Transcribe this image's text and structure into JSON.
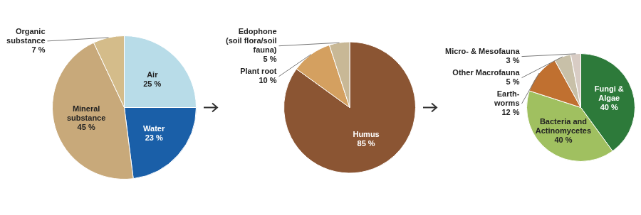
{
  "chart_data": [
    {
      "type": "pie",
      "categories": [
        "Air",
        "Water",
        "Mineral\nsubstance",
        "Organic\nsubstance"
      ],
      "values": [
        25,
        23,
        45,
        7
      ],
      "value_labels": [
        "25 %",
        "23 %",
        "45 %",
        "7 %"
      ],
      "colors": [
        "#b8dce8",
        "#1a5fa8",
        "#c8a97a",
        "#d4bc8a"
      ],
      "data_labels": true
    },
    {
      "type": "pie",
      "categories": [
        "Humus",
        "Plant root",
        "Edophone\n(soil flora/soil\nfauna)"
      ],
      "values": [
        85,
        10,
        5
      ],
      "value_labels": [
        "85 %",
        "10 %",
        "5 %"
      ],
      "colors": [
        "#8B5533",
        "#d4a060",
        "#c8b896"
      ],
      "data_labels": true
    },
    {
      "type": "pie",
      "categories": [
        "Fungi &\nAlgae",
        "Bacteria and\nActinomycetes",
        "Earth-\nworms",
        "Other Macrofauna",
        "Micro- & Mesofauna"
      ],
      "values": [
        40,
        40,
        12,
        5,
        3
      ],
      "value_labels": [
        "40 %",
        "40 %",
        "12 %",
        "5 %",
        "3 %"
      ],
      "colors": [
        "#2d7a3a",
        "#a0c060",
        "#c07030",
        "#c8c0a8",
        "#d8ccc4"
      ],
      "data_labels": true
    }
  ]
}
